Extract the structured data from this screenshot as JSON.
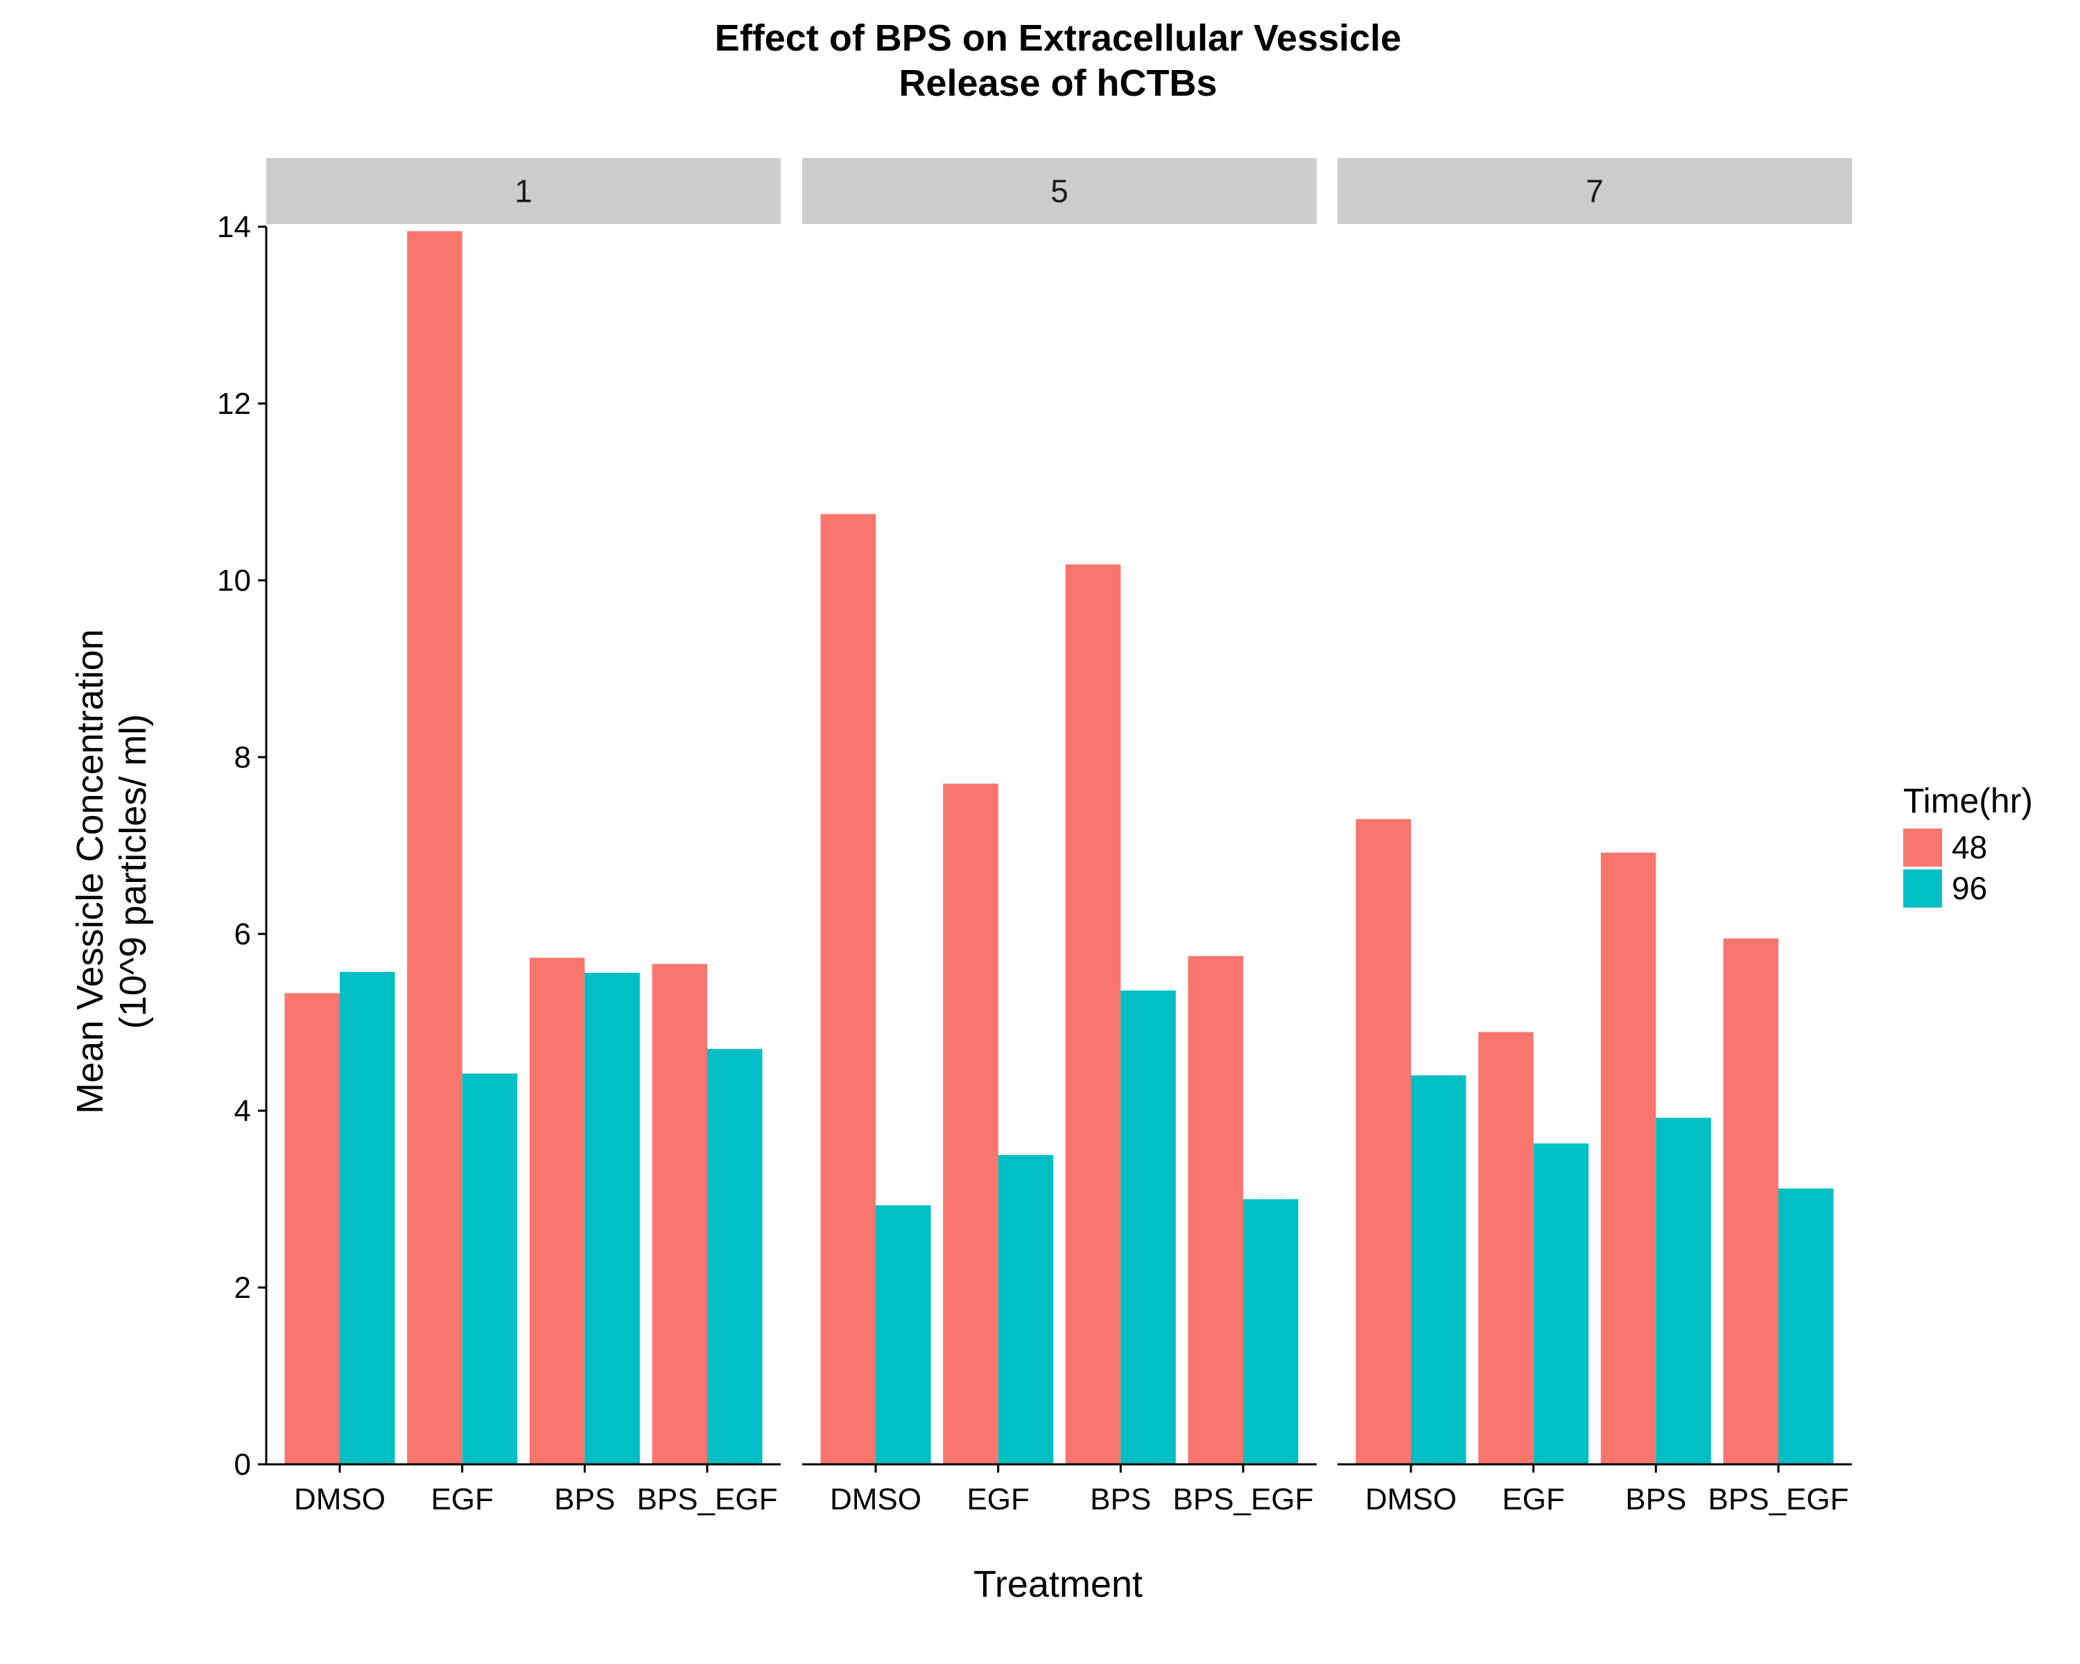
{
  "chart_data": {
    "type": "bar",
    "title": [
      "Effect of BPS on Extracellular Vessicle",
      "Release of hCTBs"
    ],
    "xlabel": "Treatment",
    "ylabel": [
      "Mean Vessicle Concentration",
      "(10^9 particles/ ml)"
    ],
    "ylim": [
      0,
      14
    ],
    "yticks": [
      0,
      2,
      4,
      6,
      8,
      10,
      12,
      14
    ],
    "categories": [
      "DMSO",
      "EGF",
      "BPS",
      "BPS_EGF"
    ],
    "legend": {
      "title": "Time(hr)",
      "position": "right"
    },
    "colors": {
      "48": "#F8766D",
      "96": "#00BFC4",
      "strip": "#cccccc"
    },
    "facets": [
      {
        "label": "1",
        "series": [
          {
            "name": "48",
            "values": [
              5.33,
              13.95,
              5.73,
              5.66
            ]
          },
          {
            "name": "96",
            "values": [
              5.57,
              4.42,
              5.56,
              4.7
            ]
          }
        ]
      },
      {
        "label": "5",
        "series": [
          {
            "name": "48",
            "values": [
              10.75,
              7.7,
              10.18,
              5.75
            ]
          },
          {
            "name": "96",
            "values": [
              2.93,
              3.5,
              5.36,
              3.0
            ]
          }
        ]
      },
      {
        "label": "7",
        "series": [
          {
            "name": "48",
            "values": [
              7.3,
              4.89,
              6.92,
              5.95
            ]
          },
          {
            "name": "96",
            "values": [
              4.4,
              3.63,
              3.92,
              3.12
            ]
          }
        ]
      }
    ]
  }
}
